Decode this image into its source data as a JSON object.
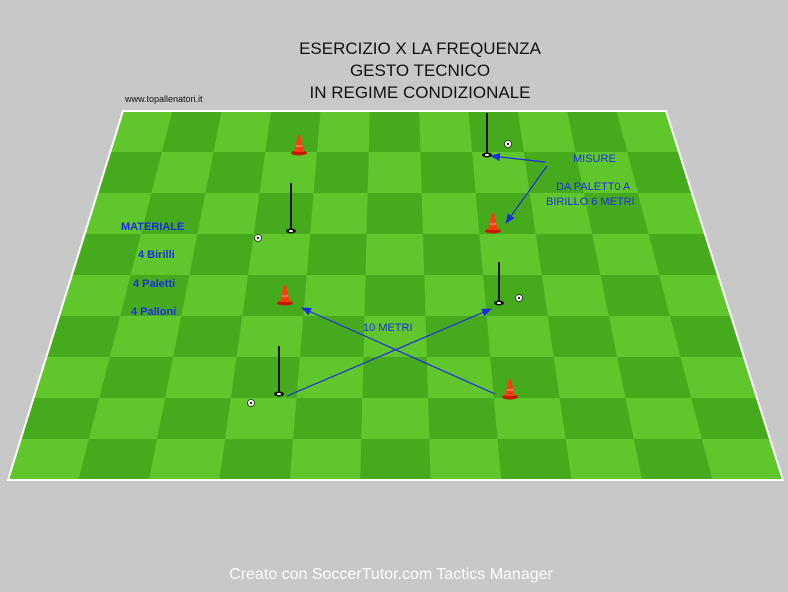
{
  "title_lines": [
    "ESERCIZIO  X  LA FREQUENZA",
    "GESTO TECNICO",
    "IN REGIME CONDIZIONALE"
  ],
  "website": "www.topallenatori.it",
  "materials": {
    "heading": "MATERIALE",
    "items": [
      "4 Birilli",
      "4 Paletti",
      "4 Palloni"
    ]
  },
  "measures": {
    "heading": "MISURE",
    "line1": "DA PALETT0 A",
    "line2": "BIRILLO  6 METRI"
  },
  "distance_label": "10 METRI",
  "footer": "Creato con SoccerTutor.com Tactics Manager",
  "colors": {
    "background": "#c8c8c8",
    "grass_light": "#5fc62b",
    "grass_dark": "#46ab1c",
    "cone": "#ff3b14",
    "arrow": "#1a2ee0"
  }
}
